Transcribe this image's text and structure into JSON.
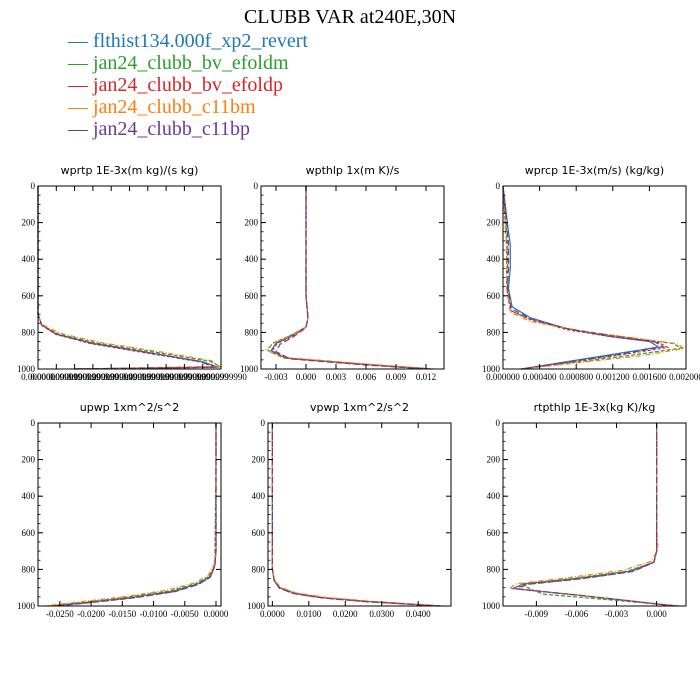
{
  "title": "CLUBB VAR at240E,30N",
  "legend": [
    {
      "name": "flthist134.000f_xp2_revert",
      "color": "#1f77b4"
    },
    {
      "name": "jan24_clubb_bv_efoldm",
      "color": "#2ca02c"
    },
    {
      "name": "jan24_clubb_bv_efoldp",
      "color": "#d62728"
    },
    {
      "name": "jan24_clubb_c11bm",
      "color": "#ff7f0e"
    },
    {
      "name": "jan24_clubb_c11bp",
      "color": "#6a3d9a"
    }
  ],
  "chart_data": [
    {
      "type": "line",
      "title": "wprtp  1E-3x(m kg)/(s kg)",
      "xlim": [
        0.0,
        9.99999e-05
      ],
      "ylim": [
        1000,
        0
      ],
      "yticks": [
        0,
        200,
        400,
        600,
        800,
        1000
      ],
      "xticks": [
        0.0,
        1e-05,
        2e-05,
        3e-05,
        4e-05,
        5e-05,
        6e-05,
        7e-05,
        8e-05,
        9e-05,
        0.0001
      ],
      "xticklabels": [
        "0.000000",
        "0.0000099999",
        "0.0000199999",
        "0.0000299999",
        "0.0000399999",
        "0.0000499999",
        "0.0000599999",
        "0.0000699999",
        "0.0000799999",
        "0.0000899999",
        "0.0000999990"
      ],
      "series": [
        {
          "name": "flthist134.000f_xp2_revert",
          "x": [
            0,
            0,
            2e-06,
            1e-05,
            3e-05,
            6e-05,
            9e-05,
            9.85e-05,
            2e-05
          ],
          "y": [
            0,
            700,
            760,
            810,
            860,
            910,
            960,
            990,
            1000
          ]
        },
        {
          "name": "jan24_clubb_bv_efoldm",
          "x": [
            0,
            0,
            2e-06,
            1.1e-05,
            3.2e-05,
            6.4e-05,
            9.4e-05,
            0.0001,
            2e-05
          ],
          "y": [
            0,
            700,
            760,
            808,
            858,
            908,
            958,
            988,
            1000
          ]
        },
        {
          "name": "jan24_clubb_bv_efoldp",
          "x": [
            0,
            0,
            2e-06,
            1e-05,
            2.9e-05,
            5.9e-05,
            8.9e-05,
            9.7e-05,
            2e-05
          ],
          "y": [
            0,
            700,
            762,
            812,
            862,
            912,
            962,
            990,
            1000
          ]
        },
        {
          "name": "jan24_clubb_c11bm",
          "x": [
            0,
            0,
            2e-06,
            1.2e-05,
            3.4e-05,
            6.6e-05,
            9.5e-05,
            9.9e-05,
            2e-05
          ],
          "y": [
            0,
            700,
            755,
            805,
            855,
            905,
            955,
            985,
            1000
          ]
        },
        {
          "name": "jan24_clubb_c11bp",
          "x": [
            0,
            0,
            2e-06,
            1e-05,
            3e-05,
            6e-05,
            8.9e-05,
            9.6e-05,
            2e-05
          ],
          "y": [
            0,
            700,
            760,
            810,
            860,
            910,
            960,
            990,
            1000
          ]
        }
      ]
    },
    {
      "type": "line",
      "title": "wpthlp  1x(m K)/s",
      "xlim": [
        -0.0045,
        0.0138
      ],
      "ylim": [
        1000,
        0
      ],
      "yticks": [
        0,
        200,
        400,
        600,
        800,
        1000
      ],
      "xticks": [
        -0.003,
        0.0,
        0.003,
        0.006,
        0.009,
        0.012
      ],
      "xticklabels": [
        "-0.003",
        "0.000",
        "0.003",
        "0.006",
        "0.009",
        "0.012"
      ],
      "series": [
        {
          "name": "flthist134.000f_xp2_revert",
          "x": [
            0,
            0,
            0.0002,
            0,
            -0.0015,
            -0.003,
            -0.0035,
            -0.002,
            0.006,
            0.0125
          ],
          "y": [
            0,
            600,
            720,
            770,
            820,
            860,
            900,
            940,
            975,
            1000
          ]
        },
        {
          "name": "jan24_clubb_bv_efoldm",
          "x": [
            0,
            0,
            0.0002,
            0,
            -0.0017,
            -0.0034,
            -0.0038,
            -0.0022,
            0.006,
            0.0128
          ],
          "y": [
            0,
            600,
            720,
            770,
            820,
            860,
            900,
            940,
            975,
            1000
          ]
        },
        {
          "name": "jan24_clubb_bv_efoldp",
          "x": [
            0,
            0,
            0.0002,
            0,
            -0.0014,
            -0.0029,
            -0.0034,
            -0.0018,
            0.0058,
            0.0124
          ],
          "y": [
            0,
            600,
            720,
            772,
            822,
            862,
            902,
            942,
            976,
            1000
          ]
        },
        {
          "name": "jan24_clubb_c11bm",
          "x": [
            0,
            0,
            0.0002,
            0,
            -0.0016,
            -0.0032,
            -0.004,
            -0.0025,
            0.006,
            0.0127
          ],
          "y": [
            0,
            600,
            720,
            770,
            818,
            858,
            895,
            935,
            972,
            1000
          ]
        },
        {
          "name": "jan24_clubb_c11bp",
          "x": [
            0,
            0,
            0.0002,
            0,
            -0.0013,
            -0.0026,
            -0.003,
            -0.0016,
            0.0057,
            0.0122
          ],
          "y": [
            0,
            600,
            720,
            775,
            825,
            865,
            905,
            945,
            977,
            1000
          ]
        }
      ]
    },
    {
      "type": "line",
      "title": "wprcp  1E-3x(m/s) (kg/kg)",
      "xlim": [
        0.0,
        0.002
      ],
      "ylim": [
        1000,
        0
      ],
      "yticks": [
        0,
        200,
        400,
        600,
        800,
        1000
      ],
      "xticks": [
        0.0,
        0.0004,
        0.0008,
        0.0012,
        0.0016,
        0.002
      ],
      "xticklabels": [
        "0.000000",
        "0.000400",
        "0.000800",
        "0.001200",
        "0.001600",
        "0.002000"
      ],
      "series": [
        {
          "name": "flthist134.000f_xp2_revert",
          "x": [
            0,
            6e-05,
            8e-05,
            8e-05,
            6e-05,
            0.0001,
            0.0003,
            0.0007,
            0.00115,
            0.0016,
            0.0017,
            0.0012,
            0.0002
          ],
          "y": [
            0,
            250,
            320,
            450,
            560,
            660,
            720,
            780,
            820,
            850,
            880,
            920,
            1000
          ]
        },
        {
          "name": "jan24_clubb_bv_efoldm",
          "x": [
            0,
            4e-05,
            5e-05,
            5e-05,
            5e-05,
            8e-05,
            0.0003,
            0.0008,
            0.0014,
            0.00185,
            0.00195,
            0.0014,
            0.0002
          ],
          "y": [
            0,
            250,
            320,
            450,
            560,
            680,
            730,
            790,
            830,
            860,
            885,
            925,
            1000
          ]
        },
        {
          "name": "jan24_clubb_bv_efoldp",
          "x": [
            0,
            3e-05,
            4e-05,
            4e-05,
            4e-05,
            8e-05,
            0.0003,
            0.0007,
            0.0012,
            0.0017,
            0.0018,
            0.0013,
            0.0002
          ],
          "y": [
            0,
            250,
            320,
            450,
            560,
            680,
            730,
            785,
            825,
            855,
            882,
            922,
            1000
          ]
        },
        {
          "name": "jan24_clubb_c11bm",
          "x": [
            0,
            3e-05,
            4e-05,
            4e-05,
            4e-05,
            8e-05,
            0.0003,
            0.0009,
            0.0015,
            0.0019,
            0.00198,
            0.0015,
            0.0002
          ],
          "y": [
            0,
            250,
            320,
            450,
            560,
            690,
            740,
            795,
            835,
            862,
            888,
            928,
            1000
          ]
        },
        {
          "name": "jan24_clubb_c11bp",
          "x": [
            0,
            5e-05,
            6e-05,
            6e-05,
            5e-05,
            9e-05,
            0.0003,
            0.0007,
            0.0012,
            0.00165,
            0.00175,
            0.0013,
            0.0002
          ],
          "y": [
            0,
            250,
            320,
            450,
            560,
            670,
            725,
            780,
            820,
            850,
            878,
            918,
            1000
          ]
        }
      ]
    },
    {
      "type": "line",
      "title": "upwp  1xm^2/s^2",
      "xlim": [
        -0.0285,
        0.0008
      ],
      "ylim": [
        1000,
        0
      ],
      "yticks": [
        0,
        200,
        400,
        600,
        800,
        1000
      ],
      "xticks": [
        -0.025,
        -0.02,
        -0.015,
        -0.01,
        -0.005,
        0.0
      ],
      "xticklabels": [
        "-0.0250",
        "-0.0200",
        "-0.0150",
        "-0.0100",
        "-0.0050",
        "0.0000"
      ],
      "series": [
        {
          "name": "flthist134.000f_xp2_revert",
          "x": [
            0,
            0,
            -0.0002,
            -0.001,
            -0.003,
            -0.007,
            -0.014,
            -0.022,
            -0.0265
          ],
          "y": [
            0,
            700,
            780,
            840,
            880,
            920,
            955,
            985,
            1000
          ]
        },
        {
          "name": "jan24_clubb_bv_efoldm",
          "x": [
            0,
            0,
            -0.0002,
            -0.0011,
            -0.0032,
            -0.0075,
            -0.0145,
            -0.0225,
            -0.027
          ],
          "y": [
            0,
            200,
            780,
            838,
            878,
            918,
            953,
            984,
            1000
          ]
        },
        {
          "name": "jan24_clubb_bv_efoldp",
          "x": [
            0,
            0,
            -0.0002,
            -0.0009,
            -0.0028,
            -0.0068,
            -0.0135,
            -0.0215,
            -0.026
          ],
          "y": [
            0,
            700,
            782,
            842,
            882,
            922,
            956,
            986,
            1000
          ]
        },
        {
          "name": "jan24_clubb_c11bm",
          "x": [
            0,
            0,
            -0.0003,
            -0.0013,
            -0.0035,
            -0.008,
            -0.015,
            -0.023,
            -0.0275
          ],
          "y": [
            0,
            700,
            775,
            835,
            875,
            915,
            950,
            982,
            1000
          ]
        },
        {
          "name": "jan24_clubb_c11bp",
          "x": [
            0,
            0,
            -0.0002,
            -0.0009,
            -0.0028,
            -0.0066,
            -0.0132,
            -0.0212,
            -0.0258
          ],
          "y": [
            0,
            700,
            782,
            842,
            882,
            922,
            956,
            986,
            1000
          ]
        }
      ]
    },
    {
      "type": "line",
      "title": "vpwp  1xm^2/s^2",
      "xlim": [
        -0.0012,
        0.049
      ],
      "ylim": [
        1000,
        0
      ],
      "yticks": [
        0,
        200,
        400,
        600,
        800,
        1000
      ],
      "xticks": [
        0.0,
        0.01,
        0.02,
        0.03,
        0.04
      ],
      "xticklabels": [
        "0.0000",
        "0.0100",
        "0.0200",
        "0.0300",
        "0.0400"
      ],
      "series": [
        {
          "name": "flthist134.000f_xp2_revert",
          "x": [
            0,
            0,
            0.0005,
            0.002,
            0.006,
            0.014,
            0.026,
            0.038,
            0.046
          ],
          "y": [
            0,
            800,
            860,
            900,
            930,
            955,
            975,
            990,
            1000
          ]
        },
        {
          "name": "jan24_clubb_bv_efoldm",
          "x": [
            0,
            0,
            0.0005,
            0.0021,
            0.0062,
            0.0143,
            0.0265,
            0.0385,
            0.0465
          ],
          "y": [
            0,
            800,
            860,
            900,
            930,
            955,
            975,
            990,
            1000
          ]
        },
        {
          "name": "jan24_clubb_bv_efoldp",
          "x": [
            0,
            0,
            0.0005,
            0.0019,
            0.0058,
            0.0137,
            0.0255,
            0.0375,
            0.0455
          ],
          "y": [
            0,
            800,
            862,
            902,
            932,
            956,
            976,
            990,
            1000
          ]
        },
        {
          "name": "jan24_clubb_c11bm",
          "x": [
            0,
            0,
            0.0006,
            0.0022,
            0.0065,
            0.0147,
            0.027,
            0.039,
            0.047
          ],
          "y": [
            0,
            800,
            858,
            898,
            928,
            953,
            974,
            989,
            1000
          ]
        },
        {
          "name": "jan24_clubb_c11bp",
          "x": [
            0,
            0,
            0.0005,
            0.0019,
            0.0058,
            0.0136,
            0.0254,
            0.0374,
            0.0454
          ],
          "y": [
            0,
            800,
            862,
            902,
            932,
            956,
            976,
            990,
            1000
          ]
        }
      ]
    },
    {
      "type": "line",
      "title": "rtpthlp  1E-3x(kg K)/kg",
      "xlim": [
        -0.0115,
        0.0022
      ],
      "ylim": [
        1000,
        0
      ],
      "yticks": [
        0,
        200,
        400,
        600,
        800,
        1000
      ],
      "xticks": [
        -0.009,
        -0.006,
        -0.003,
        0.0
      ],
      "xticklabels": [
        "-0.009",
        "-0.006",
        "-0.003",
        "0.000"
      ],
      "series": [
        {
          "name": "flthist134.000f_xp2_revert",
          "x": [
            0,
            0,
            0,
            -0.0002,
            -0.002,
            -0.006,
            -0.01,
            -0.0108,
            -0.006,
            0.0015
          ],
          "y": [
            0,
            550,
            700,
            760,
            810,
            850,
            880,
            905,
            940,
            1000
          ]
        },
        {
          "name": "jan24_clubb_bv_efoldm",
          "x": [
            0,
            0,
            0,
            -0.0002,
            -0.0022,
            -0.0063,
            -0.0102,
            -0.0095,
            -0.0085,
            0.0018
          ],
          "y": [
            0,
            550,
            700,
            760,
            810,
            850,
            880,
            905,
            935,
            1000
          ]
        },
        {
          "name": "jan24_clubb_bv_efoldp",
          "x": [
            0,
            0,
            0,
            -0.0002,
            -0.0019,
            -0.0058,
            -0.0098,
            -0.0106,
            -0.0058,
            0.0014
          ],
          "y": [
            0,
            550,
            700,
            762,
            812,
            852,
            882,
            906,
            942,
            1000
          ]
        },
        {
          "name": "jan24_clubb_c11bm",
          "x": [
            0,
            0,
            0.0001,
            -0.0004,
            -0.0025,
            -0.0066,
            -0.0105,
            -0.011,
            -0.0062,
            0.0017
          ],
          "y": [
            0,
            550,
            690,
            755,
            805,
            845,
            878,
            903,
            938,
            1000
          ]
        },
        {
          "name": "jan24_clubb_c11bp",
          "x": [
            0,
            0,
            0,
            -0.0002,
            -0.0018,
            -0.0057,
            -0.0097,
            -0.0104,
            -0.0057,
            0.0013
          ],
          "y": [
            0,
            550,
            700,
            762,
            812,
            852,
            882,
            906,
            942,
            1000
          ]
        }
      ]
    }
  ]
}
